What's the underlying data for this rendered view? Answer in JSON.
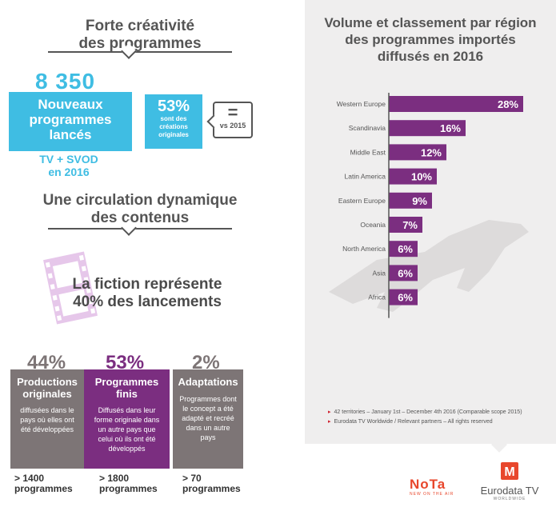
{
  "section1": {
    "title_line1": "Forte créativité",
    "title_line2": "des programmes",
    "big_number": "8 350",
    "new_box_line1": "Nouveaux",
    "new_box_line2": "programmes",
    "new_box_line3": "lancés",
    "scope_line1": "TV + SVOD",
    "scope_line2": "en 2016",
    "original_pct": "53%",
    "original_line1": "sont des",
    "original_line2": "créations",
    "original_line3": "originales",
    "vs_symbol": "=",
    "vs_label": "vs 2015"
  },
  "section2": {
    "title_line1": "Une circulation dynamique",
    "title_line2": "des contenus",
    "fiction_line1": "La fiction représente",
    "fiction_line2": "40% des lancements"
  },
  "columns": [
    {
      "pct": "44%",
      "title_line1": "Productions",
      "title_line2": "originales",
      "desc": "diffusées dans le pays où elles ont été développées",
      "count_line1": "> 1400",
      "count_line2": "programmes"
    },
    {
      "pct": "53%",
      "title_line1": "Programmes",
      "title_line2": "finis",
      "desc": "Diffusés dans leur forme originale dans un autre pays que celui où ils ont été développés",
      "count_line1": "> 1800",
      "count_line2": "programmes"
    },
    {
      "pct": "2%",
      "title_line1": "Adaptations",
      "title_line2": "",
      "desc": "Programmes dont le concept a été adapté et recréé dans un autre pays",
      "count_line1": "> 70",
      "count_line2": "programmes"
    }
  ],
  "chart_panel": {
    "title_line1": "Volume et classement par région",
    "title_line2": "des programmes importés",
    "title_line3": "diffusés en 2016",
    "footnote1": "42 territories – January 1st – December 4th 2016 (Comparable scope 2015)",
    "footnote2": "Eurodata TV Worldwide / Relevant partners – All rights reserved"
  },
  "chart_data": {
    "type": "bar",
    "orientation": "horizontal",
    "categories": [
      "Western Europe",
      "Scandinavia",
      "Middle East",
      "Latin America",
      "Eastern Europe",
      "Oceania",
      "North America",
      "Asia",
      "Africa"
    ],
    "values": [
      28,
      16,
      12,
      10,
      9,
      7,
      6,
      6,
      6
    ],
    "value_labels": [
      "28%",
      "16%",
      "12%",
      "10%",
      "9%",
      "7%",
      "6%",
      "6%",
      "6%"
    ],
    "unit": "%",
    "xlim": [
      0,
      30
    ],
    "grid": false,
    "legend": "none"
  },
  "logos": {
    "nota_word": "NoTa",
    "nota_tag": "NEW ON THE AIR",
    "eurodata_word": "Eurodata TV",
    "eurodata_tag": "WORLDWIDE",
    "eurodata_mark": "M"
  },
  "colors": {
    "blue": "#3fbde3",
    "purple": "#7b2e80",
    "gray_box": "#7d7576",
    "panel_bg": "#efeeee",
    "orange": "#e8472c"
  }
}
